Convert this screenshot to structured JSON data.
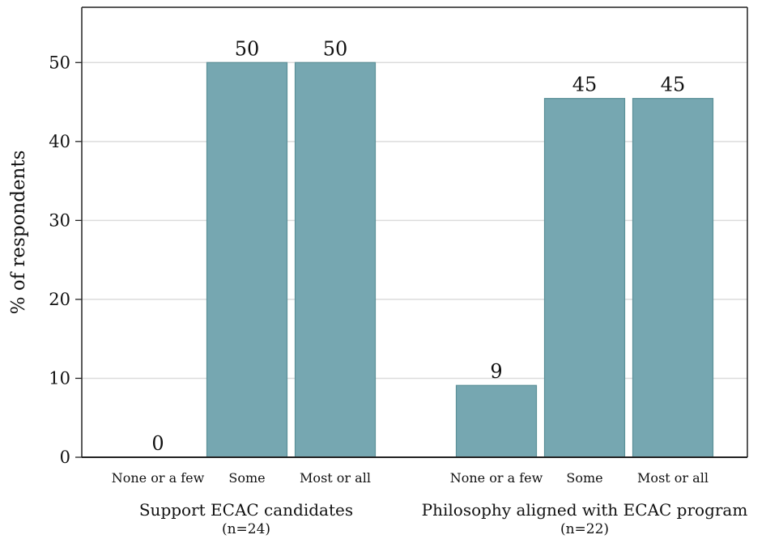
{
  "chart_data": {
    "type": "bar",
    "ylabel": "% of respondents",
    "ylim": [
      0,
      57
    ],
    "yticks": [
      0,
      10,
      20,
      30,
      40,
      50
    ],
    "grid": true,
    "bar_color": "#76a7b1",
    "bar_edge_color": "#5a9098",
    "groups": [
      {
        "label": "Support ECAC candidates",
        "sublabel": "(n=24)",
        "categories": [
          "None or a few",
          "Some",
          "Most or all"
        ],
        "values": [
          0,
          50,
          50
        ],
        "value_labels": [
          "0",
          "50",
          "50"
        ]
      },
      {
        "label": "Philosophy aligned with ECAC program",
        "sublabel": "(n=22)",
        "categories": [
          "None or a few",
          "Some",
          "Most or all"
        ],
        "values": [
          9.1,
          45.45,
          45.45
        ],
        "value_labels": [
          "9",
          "45",
          "45"
        ]
      }
    ]
  }
}
